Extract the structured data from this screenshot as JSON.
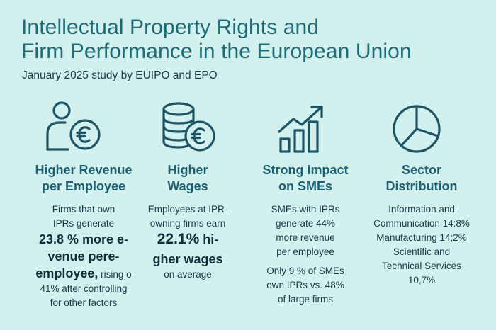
{
  "title": {
    "line1": "Intellectual Property Rights and",
    "line2": "Firm Performance in the European Union"
  },
  "subtitle": "January 2025  study by EUIPO and EPO",
  "colors": {
    "background": "#d2f1ee",
    "title": "#1d6d78",
    "icon_stroke": "#1d5566",
    "heading": "#1d6173",
    "text": "#173a48"
  },
  "columns": [
    {
      "icon": "person-euro-icon",
      "heading": [
        "Higher Revenue",
        "per Employee"
      ],
      "paragraphs": [
        {
          "lines": [
            {
              "text": "Firms that own",
              "bold": false
            },
            {
              "text": "IPRs generate",
              "bold": false
            },
            {
              "text": "23.8 % more e-",
              "bold": true
            },
            {
              "text": "venue pere-",
              "bold": true
            },
            {
              "bold_text": "employee,",
              "text": " rising o",
              "mixed": true
            },
            {
              "text": "41% after controlling",
              "bold": false
            },
            {
              "text": "for other factors",
              "bold": false
            }
          ]
        }
      ]
    },
    {
      "icon": "coins-euro-icon",
      "heading": [
        "Higher",
        "Wages"
      ],
      "paragraphs": [
        {
          "lines": [
            {
              "text": "Employees at IPR-",
              "bold": false
            },
            {
              "text": "owning firms earn",
              "bold": false
            },
            {
              "bold_text": "22.1%",
              "text": " hi-",
              "mixed": true
            },
            {
              "text": "gher wages",
              "bold": true
            },
            {
              "text": "on average",
              "bold": false
            }
          ]
        }
      ]
    },
    {
      "icon": "growth-chart-icon",
      "heading": [
        "Strong Impact",
        "on SMEs"
      ],
      "paragraphs": [
        {
          "lines": [
            {
              "text": "SMEs with IPRs",
              "bold": false
            },
            {
              "text": "generate 44%",
              "bold": false
            },
            {
              "text": "more revenue",
              "bold": false
            },
            {
              "text": "per employee",
              "bold": false
            }
          ]
        },
        {
          "lines": [
            {
              "text": "Only 9 % of SMEs",
              "bold": false
            },
            {
              "text": "own IPRs vs. 48%",
              "bold": false
            },
            {
              "text": "of large firms",
              "bold": false
            }
          ]
        }
      ]
    },
    {
      "icon": "pie-chart-icon",
      "heading": [
        "Sector",
        "Distribution"
      ],
      "paragraphs": [
        {
          "lines": [
            {
              "text": "Information and",
              "bold": false
            },
            {
              "text": "Communication 14:8%",
              "bold": false
            },
            {
              "text": "Manufacturing 14;2%",
              "bold": false
            },
            {
              "text": "Scientific and",
              "bold": false
            },
            {
              "text": "Technical Services",
              "bold": false
            },
            {
              "text": "10,7%",
              "bold": false
            }
          ]
        }
      ]
    }
  ]
}
